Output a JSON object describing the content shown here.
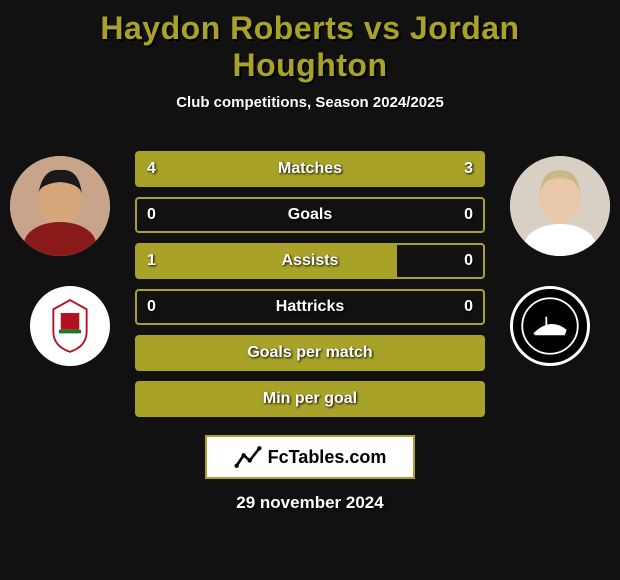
{
  "title_color": "#a9a228",
  "bar_color": "#a9a228",
  "logo_color": "#a9a228",
  "header": {
    "player1": "Haydon Roberts",
    "vs": "vs",
    "player2": "Jordan Houghton",
    "subtitle": "Club competitions, Season 2024/2025"
  },
  "p1_photo_bg": "#c8a58a",
  "p2_photo_bg": "#d8d0c4",
  "club2_bg": "#000000",
  "stats": [
    {
      "label": "Matches",
      "left_val": "4",
      "right_val": "3",
      "left_pct": 57,
      "right_pct": 43
    },
    {
      "label": "Goals",
      "left_val": "0",
      "right_val": "0",
      "left_pct": 0,
      "right_pct": 0
    },
    {
      "label": "Assists",
      "left_val": "1",
      "right_val": "0",
      "left_pct": 75,
      "right_pct": 0
    },
    {
      "label": "Hattricks",
      "left_val": "0",
      "right_val": "0",
      "left_pct": 0,
      "right_pct": 0
    },
    {
      "label": "Goals per match",
      "left_val": "",
      "right_val": "",
      "left_pct": 100,
      "right_pct": 0
    },
    {
      "label": "Min per goal",
      "left_val": "",
      "right_val": "",
      "left_pct": 100,
      "right_pct": 0
    }
  ],
  "footer": {
    "site": "FcTables.com",
    "date": "29 november 2024"
  }
}
